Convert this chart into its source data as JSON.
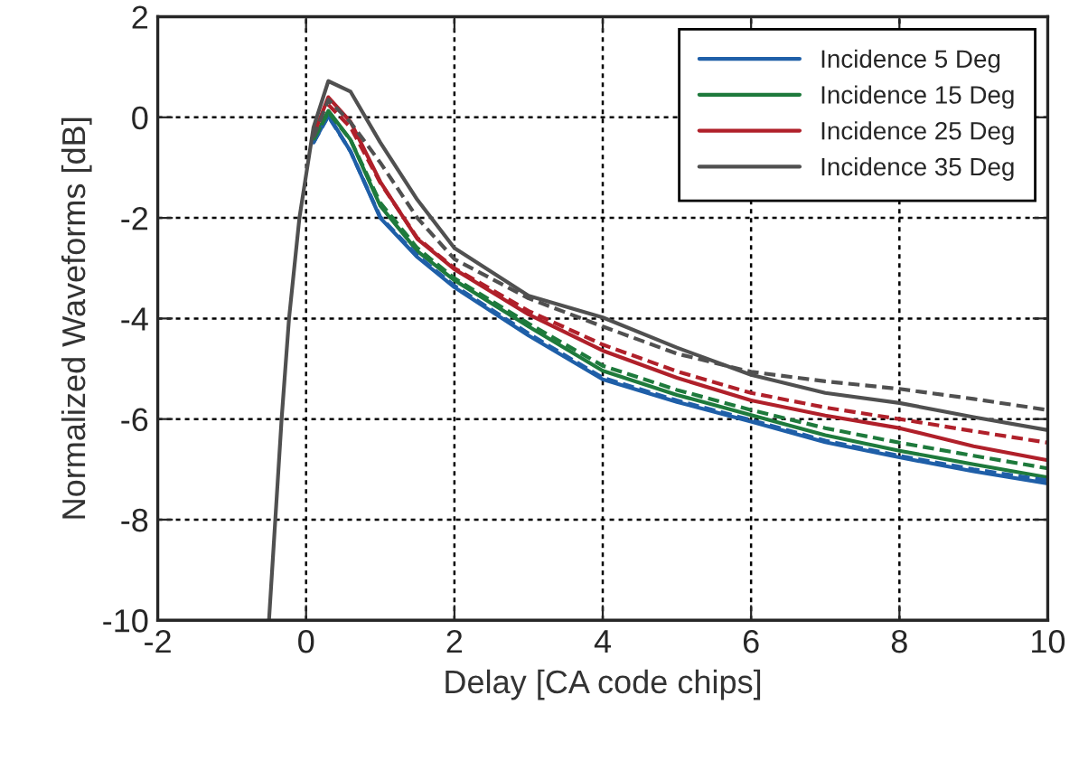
{
  "chart_data": {
    "type": "line",
    "xlabel": "Delay [CA code chips]",
    "ylabel": "Normalized Waveforms [dB]",
    "x": [
      -0.5,
      -0.33,
      -0.23,
      -0.09,
      0.1,
      0.3,
      0.6,
      1,
      1.5,
      2,
      3,
      4,
      5,
      6,
      7,
      8,
      9,
      10
    ],
    "xlim": [
      -2,
      10
    ],
    "xticks": [
      -2,
      0,
      2,
      4,
      6,
      8,
      10
    ],
    "ylim": [
      -10,
      2
    ],
    "yticks": [
      -10,
      -8,
      -6,
      -4,
      -2,
      0,
      2
    ],
    "grid": true,
    "legend": "top right",
    "line_style": "solid",
    "series": [
      {
        "name": "Incidence 5 Deg",
        "color": "#1f5fa8",
        "values": [
          null,
          null,
          null,
          null,
          -0.5,
          0.04,
          -0.68,
          -2.0,
          -2.78,
          -3.38,
          -4.34,
          -5.21,
          -5.66,
          -6.05,
          -6.46,
          -6.76,
          -7.04,
          -7.28
        ]
      },
      {
        "name": "Incidence 15 Deg",
        "color": "#1e7a3c",
        "values": [
          null,
          null,
          null,
          null,
          -0.45,
          0.13,
          -0.45,
          -1.76,
          -2.66,
          -3.24,
          -4.16,
          -5.04,
          -5.52,
          -5.92,
          -6.32,
          -6.63,
          -6.9,
          -7.16
        ]
      },
      {
        "name": "Incidence 25 Deg",
        "color": "#b0202a",
        "values": [
          null,
          null,
          null,
          null,
          -0.35,
          0.4,
          -0.09,
          -1.28,
          -2.42,
          -3.02,
          -3.92,
          -4.64,
          -5.18,
          -5.63,
          -5.93,
          -6.18,
          -6.54,
          -6.82
        ]
      },
      {
        "color": "#1f5fa8",
        "line_style": "dashed",
        "values": [
          null,
          null,
          null,
          null,
          -0.5,
          0.02,
          -0.68,
          -1.98,
          -2.75,
          -3.35,
          -4.3,
          -5.18,
          -5.63,
          -6.02,
          -6.43,
          -6.73,
          -7.0,
          -7.22
        ]
      },
      {
        "color": "#1e7a3c",
        "line_style": "dashed",
        "values": [
          null,
          null,
          null,
          null,
          -0.45,
          0.1,
          -0.45,
          -1.7,
          -2.6,
          -3.2,
          -4.1,
          -4.94,
          -5.42,
          -5.82,
          -6.18,
          -6.47,
          -6.73,
          -6.98
        ]
      },
      {
        "color": "#b0202a",
        "line_style": "dashed",
        "values": [
          null,
          null,
          null,
          null,
          null,
          0.25,
          -0.2,
          -1.3,
          -2.4,
          -3.0,
          -3.85,
          -4.52,
          -5.05,
          -5.48,
          -5.77,
          -6.0,
          -6.24,
          -6.47
        ]
      },
      {
        "color": "#505050",
        "line_style": "dashed",
        "values": [
          null,
          null,
          null,
          null,
          -0.4,
          0.35,
          -0.1,
          -0.9,
          -2.0,
          -2.82,
          -3.6,
          -4.16,
          -4.7,
          -5.06,
          -5.25,
          -5.4,
          -5.6,
          -5.82
        ]
      },
      {
        "name": "Incidence 35 Deg",
        "color": "#505050",
        "values": [
          -10,
          -6,
          -4,
          -2,
          -0.2,
          0.72,
          0.51,
          -0.5,
          -1.64,
          -2.6,
          -3.55,
          -3.98,
          -4.58,
          -5.12,
          -5.48,
          -5.68,
          -5.96,
          -6.22
        ]
      }
    ]
  }
}
